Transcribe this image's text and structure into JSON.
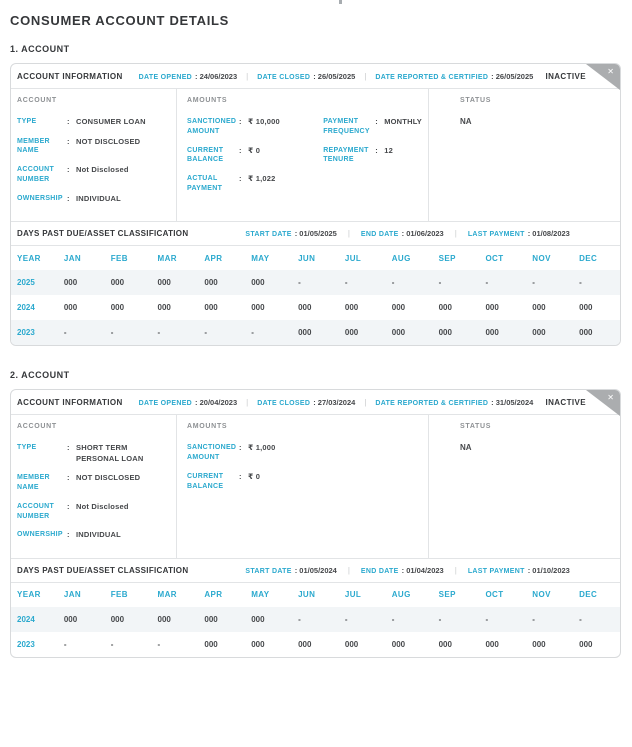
{
  "page": {
    "title": "CONSUMER ACCOUNT DETAILS"
  },
  "colors": {
    "accent": "#2BA9CE",
    "text": "#3E4043",
    "muted": "#8E9194",
    "border": "#D8DADC",
    "stripe": "#F2F5F7",
    "ribbon": "#ABADAF"
  },
  "accounts": [
    {
      "section_title": "1. ACCOUNT",
      "header": {
        "title": "ACCOUNT INFORMATION",
        "meta": [
          {
            "label": "DATE OPENED",
            "value": "24/06/2023"
          },
          {
            "label": "DATE CLOSED",
            "value": "26/05/2025"
          },
          {
            "label": "DATE REPORTED & CERTIFIED",
            "value": "26/05/2025"
          }
        ],
        "status": "INACTIVE",
        "close_glyph": "✕"
      },
      "account_col": {
        "heading": "ACCOUNT",
        "fields": [
          {
            "label": "TYPE",
            "value": "CONSUMER LOAN"
          },
          {
            "label": "MEMBER NAME",
            "value": "NOT DISCLOSED"
          },
          {
            "label": "ACCOUNT NUMBER",
            "value": "Not Disclosed"
          },
          {
            "label": "OWNERSHIP",
            "value": "INDIVIDUAL"
          }
        ]
      },
      "amounts_col": {
        "heading": "AMOUNTS",
        "fields": [
          {
            "label": "SANCTIONED AMOUNT",
            "value": "₹ 10,000"
          },
          {
            "label": "CURRENT BALANCE",
            "value": "₹ 0"
          },
          {
            "label": "ACTUAL PAYMENT",
            "value": "₹ 1,022"
          }
        ],
        "fields2": [
          {
            "label": "PAYMENT FREQUENCY",
            "value": "MONTHLY"
          },
          {
            "label": "REPAYMENT TENURE",
            "value": "12"
          }
        ]
      },
      "status_col": {
        "heading": "STATUS",
        "value": "NA"
      },
      "dpd": {
        "title": "DAYS PAST DUE/ASSET CLASSIFICATION",
        "meta": [
          {
            "label": "START DATE",
            "value": "01/05/2025"
          },
          {
            "label": "END DATE",
            "value": "01/06/2023"
          },
          {
            "label": "LAST PAYMENT",
            "value": "01/08/2023"
          }
        ],
        "columns": [
          "YEAR",
          "JAN",
          "FEB",
          "MAR",
          "APR",
          "MAY",
          "JUN",
          "JUL",
          "AUG",
          "SEP",
          "OCT",
          "NOV",
          "DEC"
        ],
        "rows": [
          {
            "year": "2025",
            "values": [
              "000",
              "000",
              "000",
              "000",
              "000",
              "-",
              "-",
              "-",
              "-",
              "-",
              "-",
              "-"
            ]
          },
          {
            "year": "2024",
            "values": [
              "000",
              "000",
              "000",
              "000",
              "000",
              "000",
              "000",
              "000",
              "000",
              "000",
              "000",
              "000"
            ]
          },
          {
            "year": "2023",
            "values": [
              "-",
              "-",
              "-",
              "-",
              "-",
              "000",
              "000",
              "000",
              "000",
              "000",
              "000",
              "000"
            ]
          }
        ]
      }
    },
    {
      "section_title": "2. ACCOUNT",
      "header": {
        "title": "ACCOUNT INFORMATION",
        "meta": [
          {
            "label": "DATE OPENED",
            "value": "20/04/2023"
          },
          {
            "label": "DATE CLOSED",
            "value": "27/03/2024"
          },
          {
            "label": "DATE REPORTED & CERTIFIED",
            "value": "31/05/2024"
          }
        ],
        "status": "INACTIVE",
        "close_glyph": "✕"
      },
      "account_col": {
        "heading": "ACCOUNT",
        "fields": [
          {
            "label": "TYPE",
            "value": "SHORT TERM PERSONAL LOAN"
          },
          {
            "label": "MEMBER NAME",
            "value": "NOT DISCLOSED"
          },
          {
            "label": "ACCOUNT NUMBER",
            "value": "Not Disclosed"
          },
          {
            "label": "OWNERSHIP",
            "value": "INDIVIDUAL"
          }
        ]
      },
      "amounts_col": {
        "heading": "AMOUNTS",
        "fields": [
          {
            "label": "SANCTIONED AMOUNT",
            "value": "₹ 1,000"
          },
          {
            "label": "CURRENT BALANCE",
            "value": "₹ 0"
          }
        ]
      },
      "status_col": {
        "heading": "STATUS",
        "value": "NA"
      },
      "dpd": {
        "title": "DAYS PAST DUE/ASSET CLASSIFICATION",
        "meta": [
          {
            "label": "START DATE",
            "value": "01/05/2024"
          },
          {
            "label": "END DATE",
            "value": "01/04/2023"
          },
          {
            "label": "LAST PAYMENT",
            "value": "01/10/2023"
          }
        ],
        "columns": [
          "YEAR",
          "JAN",
          "FEB",
          "MAR",
          "APR",
          "MAY",
          "JUN",
          "JUL",
          "AUG",
          "SEP",
          "OCT",
          "NOV",
          "DEC"
        ],
        "rows": [
          {
            "year": "2024",
            "values": [
              "000",
              "000",
              "000",
              "000",
              "000",
              "-",
              "-",
              "-",
              "-",
              "-",
              "-",
              "-"
            ]
          },
          {
            "year": "2023",
            "values": [
              "-",
              "-",
              "-",
              "000",
              "000",
              "000",
              "000",
              "000",
              "000",
              "000",
              "000",
              "000"
            ]
          }
        ]
      }
    }
  ]
}
